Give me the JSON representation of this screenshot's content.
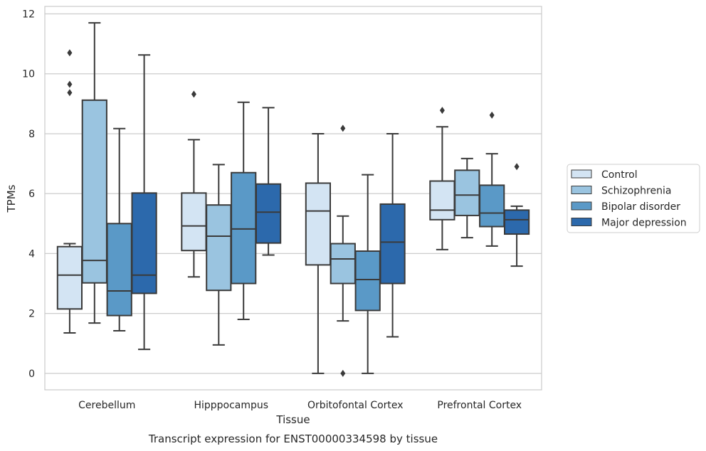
{
  "caption": "Transcript expression for ENST00000334598 by tissue",
  "chart_data": {
    "type": "box",
    "xlabel": "Tissue",
    "ylabel": "TPMs",
    "ylim": [
      -0.55,
      12.25
    ],
    "yticks": [
      0,
      2,
      4,
      6,
      8,
      10,
      12
    ],
    "grid": "horizontal",
    "legend_position": "right",
    "categories": [
      "Cerebellum",
      "Hipppocampus",
      "Orbitofontal Cortex",
      "Prefrontal Cortex"
    ],
    "series": [
      {
        "name": "Control",
        "color": "#d3e4f3",
        "boxes": [
          {
            "whislo": 1.35,
            "q1": 2.15,
            "med": 3.28,
            "q3": 4.23,
            "whishi": 4.33,
            "fliers": [
              10.7,
              9.65,
              9.37
            ]
          },
          {
            "whislo": 3.22,
            "q1": 4.1,
            "med": 4.92,
            "q3": 6.02,
            "whishi": 7.8,
            "fliers": [
              9.32
            ]
          },
          {
            "whislo": 0.0,
            "q1": 3.62,
            "med": 5.42,
            "q3": 6.35,
            "whishi": 8.0,
            "fliers": []
          },
          {
            "whislo": 4.13,
            "q1": 5.13,
            "med": 5.45,
            "q3": 6.42,
            "whishi": 8.23,
            "fliers": [
              8.78
            ]
          }
        ]
      },
      {
        "name": "Schizophrenia",
        "color": "#9ac4e0",
        "boxes": [
          {
            "whislo": 1.68,
            "q1": 3.02,
            "med": 3.77,
            "q3": 9.12,
            "whishi": 11.7,
            "fliers": []
          },
          {
            "whislo": 0.95,
            "q1": 2.77,
            "med": 4.58,
            "q3": 5.62,
            "whishi": 6.97,
            "fliers": []
          },
          {
            "whislo": 1.75,
            "q1": 3.0,
            "med": 3.82,
            "q3": 4.33,
            "whishi": 5.25,
            "fliers": [
              8.18,
              0.0
            ]
          },
          {
            "whislo": 4.53,
            "q1": 5.27,
            "med": 5.95,
            "q3": 6.78,
            "whishi": 7.17,
            "fliers": []
          }
        ]
      },
      {
        "name": "Bipolar disorder",
        "color": "#5a99c7",
        "boxes": [
          {
            "whislo": 1.42,
            "q1": 1.93,
            "med": 2.75,
            "q3": 5.0,
            "whishi": 8.17,
            "fliers": []
          },
          {
            "whislo": 1.8,
            "q1": 3.0,
            "med": 4.82,
            "q3": 6.7,
            "whishi": 9.05,
            "fliers": []
          },
          {
            "whislo": 0.0,
            "q1": 2.1,
            "med": 3.13,
            "q3": 4.08,
            "whishi": 6.63,
            "fliers": []
          },
          {
            "whislo": 4.25,
            "q1": 4.9,
            "med": 5.35,
            "q3": 6.28,
            "whishi": 7.33,
            "fliers": [
              8.62
            ]
          }
        ]
      },
      {
        "name": "Major depression",
        "color": "#2c69ac",
        "boxes": [
          {
            "whislo": 0.8,
            "q1": 2.67,
            "med": 3.28,
            "q3": 6.02,
            "whishi": 10.63,
            "fliers": []
          },
          {
            "whislo": 3.95,
            "q1": 4.35,
            "med": 5.38,
            "q3": 6.32,
            "whishi": 8.87,
            "fliers": []
          },
          {
            "whislo": 1.22,
            "q1": 3.0,
            "med": 4.38,
            "q3": 5.65,
            "whishi": 8.0,
            "fliers": []
          },
          {
            "whislo": 3.58,
            "q1": 4.65,
            "med": 5.13,
            "q3": 5.45,
            "whishi": 5.58,
            "fliers": [
              6.9
            ]
          }
        ]
      }
    ]
  }
}
